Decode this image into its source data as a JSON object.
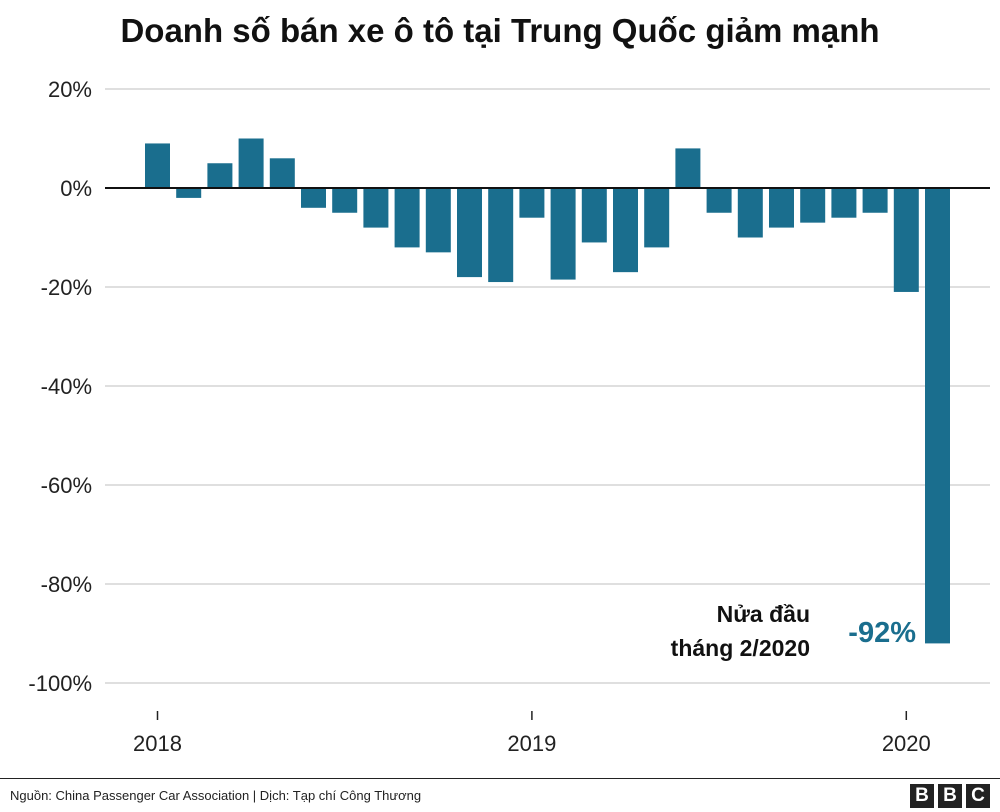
{
  "chart_data": {
    "type": "bar",
    "title": "Doanh số bán xe ô tô tại Trung Quốc giảm mạnh",
    "xlabel": "",
    "ylabel": "",
    "ylim": [
      -100,
      20
    ],
    "yticks": [
      20,
      0,
      -20,
      -40,
      -60,
      -80,
      -100
    ],
    "ytick_labels": [
      "20%",
      "0%",
      "-20%",
      "-40%",
      "-60%",
      "-80%",
      "-100%"
    ],
    "xtick_labels": [
      "2018",
      "2019",
      "2020"
    ],
    "categories": [
      "2018-01",
      "2018-02",
      "2018-03",
      "2018-04",
      "2018-05",
      "2018-06",
      "2018-07",
      "2018-08",
      "2018-09",
      "2018-10",
      "2018-11",
      "2018-12",
      "2019-01",
      "2019-02",
      "2019-03",
      "2019-04",
      "2019-05",
      "2019-06",
      "2019-07",
      "2019-08",
      "2019-09",
      "2019-10",
      "2019-11",
      "2019-12",
      "2020-01",
      "2020-02 (nửa đầu)"
    ],
    "values": [
      9,
      -2,
      5,
      10,
      6,
      -4,
      -5,
      -8,
      -12,
      -13,
      -18,
      -19,
      -6,
      -18.5,
      -11,
      -17,
      -12,
      8,
      -5,
      -10,
      -8,
      -7,
      -6,
      -5,
      -21,
      -92
    ],
    "grid": true,
    "bar_color": "#1a6e8e",
    "annotation": {
      "line1": "Nửa đầu",
      "line2": "tháng 2/2020",
      "value_label": "-92%",
      "value_color": "#1a6e8e"
    }
  },
  "footer": {
    "source": "Nguồn: China Passenger Car Association | Dịch: Tạp chí Công Thương",
    "logo_letters": [
      "B",
      "B",
      "C"
    ]
  }
}
